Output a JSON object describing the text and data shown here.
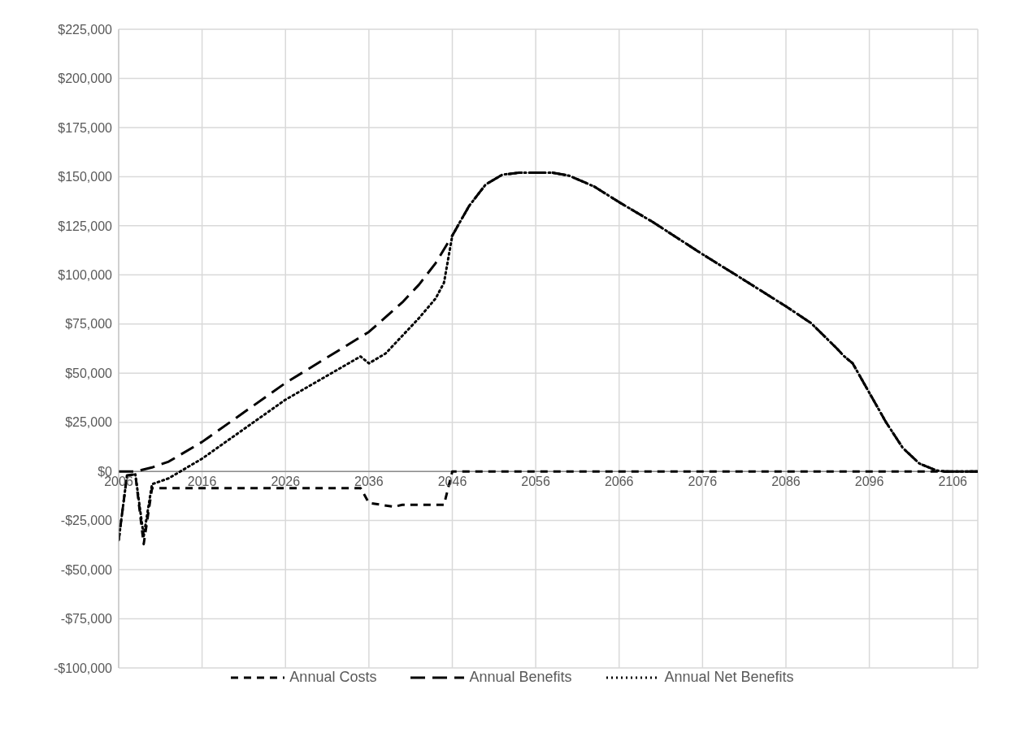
{
  "chart_data": {
    "type": "line",
    "xlim": [
      2006,
      2109
    ],
    "xticks": [
      2006,
      2016,
      2026,
      2036,
      2046,
      2056,
      2066,
      2076,
      2086,
      2096,
      2106
    ],
    "ylim": [
      -100000,
      225000
    ],
    "yticks": [
      {
        "value": -100000,
        "label": "-$100,000"
      },
      {
        "value": -75000,
        "label": "-$75,000"
      },
      {
        "value": -50000,
        "label": "-$50,000"
      },
      {
        "value": -25000,
        "label": "-$25,000"
      },
      {
        "value": 0,
        "label": "$0"
      },
      {
        "value": 25000,
        "label": "$25,000"
      },
      {
        "value": 50000,
        "label": "$50,000"
      },
      {
        "value": 75000,
        "label": "$75,000"
      },
      {
        "value": 100000,
        "label": "$100,000"
      },
      {
        "value": 125000,
        "label": "$125,000"
      },
      {
        "value": 150000,
        "label": "$150,000"
      },
      {
        "value": 175000,
        "label": "$175,000"
      },
      {
        "value": 200000,
        "label": "$200,000"
      },
      {
        "value": 225000,
        "label": "$225,000"
      }
    ],
    "grid": true,
    "legend": "bottom",
    "marker": "none",
    "series": [
      {
        "name": "Annual Costs",
        "color": "#000000",
        "line_style": "dashed",
        "x": [
          2006,
          2007,
          2008,
          2009,
          2010,
          2035,
          2036,
          2039,
          2040,
          2045,
          2046,
          2109
        ],
        "values": [
          -35000,
          -2000,
          -1500,
          -37000,
          -8500,
          -8500,
          -16000,
          -18000,
          -17000,
          -17000,
          0,
          0
        ]
      },
      {
        "name": "Annual Benefits",
        "color": "#000000",
        "line_style": "dashed",
        "x": [
          2006,
          2008,
          2010,
          2012,
          2016,
          2026,
          2036,
          2040,
          2042,
          2044,
          2046,
          2048,
          2050,
          2052,
          2054,
          2058,
          2060,
          2063,
          2066,
          2070,
          2076,
          2080,
          2086,
          2089,
          2092,
          2093,
          2094,
          2096,
          2098,
          2100,
          2102,
          2104,
          2105,
          2109
        ],
        "values": [
          0,
          0,
          2000,
          5000,
          15000,
          45000,
          71000,
          86000,
          95000,
          106000,
          120000,
          135000,
          146000,
          151000,
          152000,
          152000,
          150500,
          145000,
          137000,
          127000,
          110500,
          100000,
          84000,
          75500,
          63000,
          58500,
          55000,
          40000,
          25000,
          12000,
          4000,
          500,
          0,
          0
        ]
      },
      {
        "name": "Annual Net Benefits",
        "color": "#000000",
        "line_style": "dotted",
        "x": [
          2006,
          2007,
          2008,
          2009,
          2010,
          2012,
          2016,
          2026,
          2035,
          2036,
          2038,
          2040,
          2042,
          2044,
          2045,
          2046,
          2048,
          2050,
          2052,
          2054,
          2058,
          2060,
          2063,
          2066,
          2070,
          2076,
          2080,
          2086,
          2089,
          2092,
          2093,
          2094,
          2096,
          2098,
          2100,
          2102,
          2104,
          2105,
          2109
        ],
        "values": [
          -35000,
          -2000,
          -1500,
          -33000,
          -6500,
          -3500,
          6500,
          36500,
          58500,
          55000,
          60000,
          69000,
          78000,
          88000,
          96000,
          120000,
          135000,
          146000,
          151000,
          152000,
          152000,
          150500,
          145000,
          137000,
          127000,
          110500,
          100000,
          84000,
          75500,
          63000,
          58500,
          55000,
          40000,
          25000,
          12000,
          4000,
          500,
          0,
          0
        ]
      }
    ]
  }
}
